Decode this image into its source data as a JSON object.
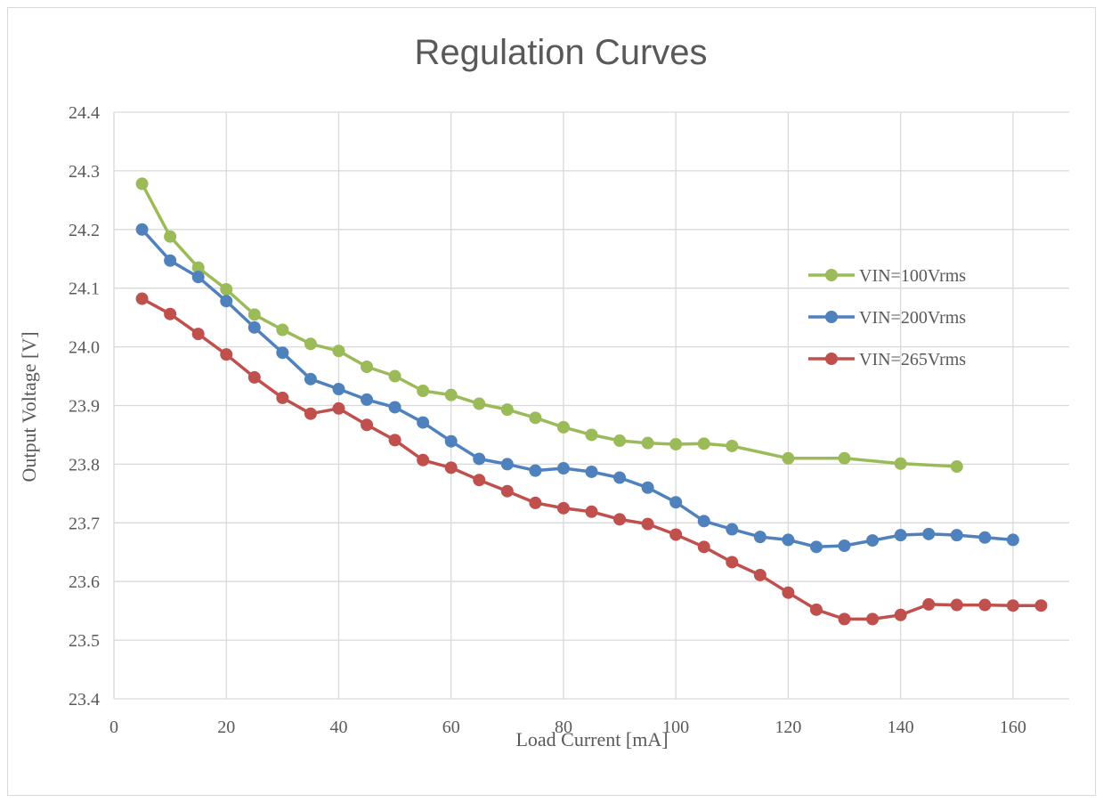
{
  "chart_data": {
    "type": "line",
    "title": "Regulation Curves",
    "xlabel": "Load Current [mA]",
    "ylabel": "Output Voltage [V]",
    "xlim": [
      0,
      170
    ],
    "ylim": [
      23.4,
      24.4
    ],
    "x_ticks": [
      "0",
      "20",
      "40",
      "60",
      "80",
      "100",
      "120",
      "140",
      "160"
    ],
    "y_ticks": [
      "23.4",
      "23.5",
      "23.6",
      "23.7",
      "23.8",
      "23.9",
      "24.0",
      "24.1",
      "24.2",
      "24.3",
      "24.4"
    ],
    "grid": true,
    "legend_position": "right",
    "series": [
      {
        "name": "VIN=100Vrms",
        "color": "#9bbb59",
        "x": [
          5,
          10,
          15,
          20,
          25,
          30,
          35,
          40,
          45,
          50,
          55,
          60,
          65,
          70,
          75,
          80,
          85,
          90,
          95,
          100,
          105,
          110,
          120,
          130,
          140,
          150
        ],
        "y": [
          24.278,
          24.188,
          24.135,
          24.098,
          24.055,
          24.029,
          24.005,
          23.993,
          23.966,
          23.95,
          23.925,
          23.918,
          23.903,
          23.893,
          23.879,
          23.863,
          23.85,
          23.84,
          23.836,
          23.834,
          23.835,
          23.831,
          23.81,
          23.81,
          23.801,
          23.796
        ]
      },
      {
        "name": "VIN=200Vrms",
        "color": "#4f81bd",
        "x": [
          5,
          10,
          15,
          20,
          25,
          30,
          35,
          40,
          45,
          50,
          55,
          60,
          65,
          70,
          75,
          80,
          85,
          90,
          95,
          100,
          105,
          110,
          115,
          120,
          125,
          130,
          135,
          140,
          145,
          150,
          155,
          160
        ],
        "y": [
          24.2,
          24.147,
          24.119,
          24.078,
          24.033,
          23.99,
          23.945,
          23.928,
          23.91,
          23.897,
          23.871,
          23.839,
          23.809,
          23.8,
          23.789,
          23.793,
          23.787,
          23.777,
          23.76,
          23.735,
          23.703,
          23.689,
          23.676,
          23.671,
          23.659,
          23.661,
          23.67,
          23.679,
          23.681,
          23.679,
          23.675,
          23.671
        ]
      },
      {
        "name": "VIN=265Vrms",
        "color": "#c0504d",
        "x": [
          5,
          10,
          15,
          20,
          25,
          30,
          35,
          40,
          45,
          50,
          55,
          60,
          65,
          70,
          75,
          80,
          85,
          90,
          95,
          100,
          105,
          110,
          115,
          120,
          125,
          130,
          135,
          140,
          145,
          150,
          155,
          160,
          165
        ],
        "y": [
          24.082,
          24.056,
          24.022,
          23.987,
          23.948,
          23.913,
          23.886,
          23.895,
          23.867,
          23.841,
          23.807,
          23.794,
          23.773,
          23.754,
          23.734,
          23.725,
          23.719,
          23.706,
          23.698,
          23.68,
          23.659,
          23.633,
          23.611,
          23.581,
          23.552,
          23.536,
          23.536,
          23.543,
          23.561,
          23.56,
          23.56,
          23.559,
          23.559
        ]
      }
    ]
  }
}
